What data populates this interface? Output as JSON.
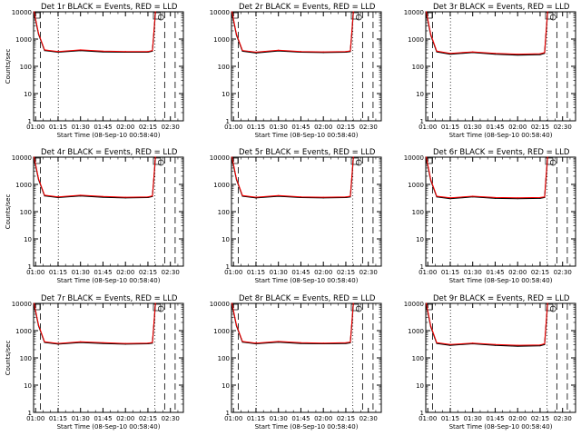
{
  "figure": {
    "x_tick_labels": [
      "01:00",
      "01:15",
      "01:30",
      "01:45",
      "02:00",
      "02:15",
      "02:30"
    ],
    "xlabel": "Start Time (08-Sep-10 00:58:40)",
    "ylabel": "Counts/sec",
    "y_tick_labels": [
      "1",
      "10",
      "100",
      "1000",
      "10000"
    ],
    "colors": {
      "events": "#000000",
      "lld": "#ff0000",
      "axes": "#000000",
      "background": "#ffffff"
    }
  },
  "chart_data": [
    {
      "type": "line",
      "title": "Det 1r BLACK = Events, RED = LLD",
      "xlabel": "Start Time (08-Sep-10 00:58:40)",
      "ylabel": "Counts/sec",
      "x_range": [
        "00:58:40",
        "02:38:40"
      ],
      "y_scale": "log",
      "ylim": [
        1,
        10000
      ],
      "series": [
        {
          "name": "Events",
          "color": "#000000",
          "x": [
            "00:59",
            "01:02",
            "01:06",
            "01:15",
            "01:30",
            "01:45",
            "02:00",
            "02:15",
            "02:18",
            "02:19",
            "02:20"
          ],
          "values": [
            9000,
            1500,
            380,
            330,
            380,
            340,
            330,
            330,
            360,
            1800,
            9500
          ]
        },
        {
          "name": "LLD",
          "color": "#ff0000",
          "x": [
            "00:59",
            "01:02",
            "01:06",
            "01:15",
            "01:30",
            "01:45",
            "02:00",
            "02:15",
            "02:18",
            "02:19",
            "02:20"
          ],
          "values": [
            10000,
            1600,
            400,
            350,
            400,
            360,
            350,
            350,
            380,
            2000,
            10000
          ]
        }
      ]
    },
    {
      "type": "line",
      "title": "Det 2r BLACK = Events, RED = LLD",
      "xlabel": "Start Time (08-Sep-10 00:58:40)",
      "ylabel": "Counts/sec",
      "x_range": [
        "00:58:40",
        "02:38:40"
      ],
      "y_scale": "log",
      "ylim": [
        1,
        10000
      ],
      "series": [
        {
          "name": "Events",
          "color": "#000000",
          "x": [
            "00:59",
            "01:02",
            "01:06",
            "01:15",
            "01:30",
            "01:45",
            "02:00",
            "02:15",
            "02:18",
            "02:19",
            "02:20"
          ],
          "values": [
            9000,
            1400,
            360,
            310,
            370,
            330,
            320,
            330,
            350,
            1700,
            9500
          ]
        },
        {
          "name": "LLD",
          "color": "#ff0000",
          "x": [
            "00:59",
            "01:02",
            "01:06",
            "01:15",
            "01:30",
            "01:45",
            "02:00",
            "02:15",
            "02:18",
            "02:19",
            "02:20"
          ],
          "values": [
            10000,
            1500,
            380,
            330,
            390,
            350,
            340,
            350,
            370,
            1900,
            10000
          ]
        }
      ]
    },
    {
      "type": "line",
      "title": "Det 3r BLACK = Events, RED = LLD",
      "xlabel": "Start Time (08-Sep-10 00:58:40)",
      "ylabel": "Counts/sec",
      "x_range": [
        "00:58:40",
        "02:38:40"
      ],
      "y_scale": "log",
      "ylim": [
        1,
        10000
      ],
      "series": [
        {
          "name": "Events",
          "color": "#000000",
          "x": [
            "00:59",
            "01:02",
            "01:06",
            "01:15",
            "01:30",
            "01:45",
            "02:00",
            "02:15",
            "02:18",
            "02:19",
            "02:20"
          ],
          "values": [
            9000,
            1400,
            340,
            280,
            320,
            280,
            260,
            270,
            300,
            1600,
            9500
          ]
        },
        {
          "name": "LLD",
          "color": "#ff0000",
          "x": [
            "00:59",
            "01:02",
            "01:06",
            "01:15",
            "01:30",
            "01:45",
            "02:00",
            "02:15",
            "02:18",
            "02:19",
            "02:20"
          ],
          "values": [
            10000,
            1500,
            360,
            300,
            340,
            300,
            280,
            290,
            320,
            1800,
            10000
          ]
        }
      ]
    },
    {
      "type": "line",
      "title": "Det 4r BLACK = Events, RED = LLD",
      "xlabel": "Start Time (08-Sep-10 00:58:40)",
      "ylabel": "Counts/sec",
      "x_range": [
        "00:58:40",
        "02:38:40"
      ],
      "y_scale": "log",
      "ylim": [
        1,
        10000
      ],
      "series": [
        {
          "name": "Events",
          "color": "#000000",
          "x": [
            "00:59",
            "01:02",
            "01:06",
            "01:15",
            "01:30",
            "01:45",
            "02:00",
            "02:15",
            "02:18",
            "02:19",
            "02:20"
          ],
          "values": [
            9000,
            1500,
            380,
            330,
            380,
            340,
            320,
            330,
            360,
            1800,
            9500
          ]
        },
        {
          "name": "LLD",
          "color": "#ff0000",
          "x": [
            "00:59",
            "01:02",
            "01:06",
            "01:15",
            "01:30",
            "01:45",
            "02:00",
            "02:15",
            "02:18",
            "02:19",
            "02:20"
          ],
          "values": [
            10000,
            1600,
            400,
            350,
            400,
            360,
            340,
            350,
            380,
            2000,
            10000
          ]
        }
      ]
    },
    {
      "type": "line",
      "title": "Det 5r BLACK = Events, RED = LLD",
      "xlabel": "Start Time (08-Sep-10 00:58:40)",
      "ylabel": "Counts/sec",
      "x_range": [
        "00:58:40",
        "02:38:40"
      ],
      "y_scale": "log",
      "ylim": [
        1,
        10000
      ],
      "series": [
        {
          "name": "Events",
          "color": "#000000",
          "x": [
            "00:59",
            "01:02",
            "01:06",
            "01:15",
            "01:30",
            "01:45",
            "02:00",
            "02:15",
            "02:18",
            "02:19",
            "02:20"
          ],
          "values": [
            9000,
            1500,
            370,
            320,
            370,
            330,
            320,
            330,
            350,
            1700,
            9500
          ]
        },
        {
          "name": "LLD",
          "color": "#ff0000",
          "x": [
            "00:59",
            "01:02",
            "01:06",
            "01:15",
            "01:30",
            "01:45",
            "02:00",
            "02:15",
            "02:18",
            "02:19",
            "02:20"
          ],
          "values": [
            10000,
            1600,
            390,
            340,
            390,
            350,
            340,
            350,
            370,
            1900,
            10000
          ]
        }
      ]
    },
    {
      "type": "line",
      "title": "Det 6r BLACK = Events, RED = LLD",
      "xlabel": "Start Time (08-Sep-10 00:58:40)",
      "ylabel": "Counts/sec",
      "x_range": [
        "00:58:40",
        "02:38:40"
      ],
      "y_scale": "log",
      "ylim": [
        1,
        10000
      ],
      "series": [
        {
          "name": "Events",
          "color": "#000000",
          "x": [
            "00:59",
            "01:02",
            "01:06",
            "01:15",
            "01:30",
            "01:45",
            "02:00",
            "02:15",
            "02:18",
            "02:19",
            "02:20"
          ],
          "values": [
            9000,
            1400,
            350,
            300,
            350,
            310,
            300,
            310,
            330,
            1700,
            9500
          ]
        },
        {
          "name": "LLD",
          "color": "#ff0000",
          "x": [
            "00:59",
            "01:02",
            "01:06",
            "01:15",
            "01:30",
            "01:45",
            "02:00",
            "02:15",
            "02:18",
            "02:19",
            "02:20"
          ],
          "values": [
            10000,
            1500,
            370,
            320,
            370,
            330,
            320,
            330,
            350,
            1900,
            10000
          ]
        }
      ]
    },
    {
      "type": "line",
      "title": "Det 7r BLACK = Events, RED = LLD",
      "xlabel": "Start Time (08-Sep-10 00:58:40)",
      "ylabel": "Counts/sec",
      "x_range": [
        "00:58:40",
        "02:38:40"
      ],
      "y_scale": "log",
      "ylim": [
        1,
        10000
      ],
      "series": [
        {
          "name": "Events",
          "color": "#000000",
          "x": [
            "00:59",
            "01:02",
            "01:06",
            "01:15",
            "01:30",
            "01:45",
            "02:00",
            "02:15",
            "02:18",
            "02:19",
            "02:20"
          ],
          "values": [
            9000,
            1500,
            370,
            320,
            370,
            340,
            320,
            330,
            350,
            1800,
            9500
          ]
        },
        {
          "name": "LLD",
          "color": "#ff0000",
          "x": [
            "00:59",
            "01:02",
            "01:06",
            "01:15",
            "01:30",
            "01:45",
            "02:00",
            "02:15",
            "02:18",
            "02:19",
            "02:20"
          ],
          "values": [
            10000,
            1600,
            390,
            340,
            390,
            360,
            340,
            350,
            370,
            2000,
            10000
          ]
        }
      ]
    },
    {
      "type": "line",
      "title": "Det 8r BLACK = Events, RED = LLD",
      "xlabel": "Start Time (08-Sep-10 00:58:40)",
      "ylabel": "Counts/sec",
      "x_range": [
        "00:58:40",
        "02:38:40"
      ],
      "y_scale": "log",
      "ylim": [
        1,
        10000
      ],
      "series": [
        {
          "name": "Events",
          "color": "#000000",
          "x": [
            "00:59",
            "01:02",
            "01:06",
            "01:15",
            "01:30",
            "01:45",
            "02:00",
            "02:15",
            "02:18",
            "02:19",
            "02:20"
          ],
          "values": [
            9000,
            1500,
            380,
            330,
            380,
            340,
            330,
            340,
            360,
            1800,
            9500
          ]
        },
        {
          "name": "LLD",
          "color": "#ff0000",
          "x": [
            "00:59",
            "01:02",
            "01:06",
            "01:15",
            "01:30",
            "01:45",
            "02:00",
            "02:15",
            "02:18",
            "02:19",
            "02:20"
          ],
          "values": [
            10000,
            1600,
            400,
            350,
            400,
            360,
            350,
            360,
            380,
            2000,
            10000
          ]
        }
      ]
    },
    {
      "type": "line",
      "title": "Det 9r BLACK = Events, RED = LLD",
      "xlabel": "Start Time (08-Sep-10 00:58:40)",
      "ylabel": "Counts/sec",
      "x_range": [
        "00:58:40",
        "02:38:40"
      ],
      "y_scale": "log",
      "ylim": [
        1,
        10000
      ],
      "series": [
        {
          "name": "Events",
          "color": "#000000",
          "x": [
            "00:59",
            "01:02",
            "01:06",
            "01:15",
            "01:30",
            "01:45",
            "02:00",
            "02:15",
            "02:18",
            "02:19",
            "02:20"
          ],
          "values": [
            9000,
            1400,
            340,
            290,
            330,
            290,
            270,
            280,
            310,
            1600,
            9500
          ]
        },
        {
          "name": "LLD",
          "color": "#ff0000",
          "x": [
            "00:59",
            "01:02",
            "01:06",
            "01:15",
            "01:30",
            "01:45",
            "02:00",
            "02:15",
            "02:18",
            "02:19",
            "02:20"
          ],
          "values": [
            10000,
            1500,
            360,
            310,
            350,
            310,
            290,
            300,
            330,
            1800,
            10000
          ]
        }
      ]
    }
  ]
}
